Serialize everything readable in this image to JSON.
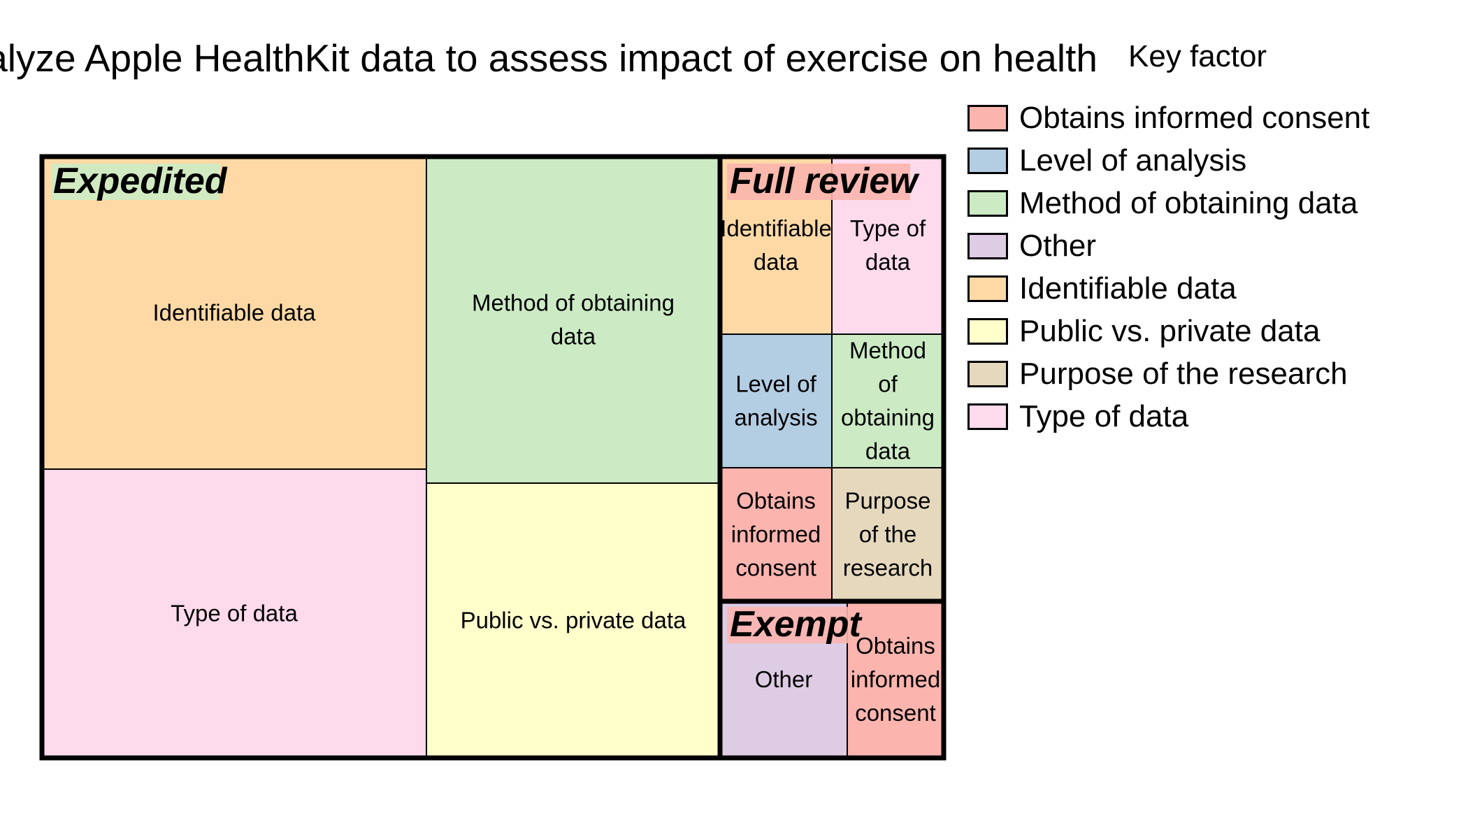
{
  "chart_data": {
    "type": "treemap",
    "title": "Analyze Apple HealthKit data to assess impact of exercise on health",
    "legend_title": "Key factor",
    "legend_position": "right",
    "legend": [
      {
        "name": "Obtains informed consent",
        "color": "#FBB4AE"
      },
      {
        "name": "Level of analysis",
        "color": "#B3CDE3"
      },
      {
        "name": "Method of obtaining data",
        "color": "#CCEBC5"
      },
      {
        "name": "Other",
        "color": "#DECBE4"
      },
      {
        "name": "Identifiable data",
        "color": "#FED9A6"
      },
      {
        "name": "Public vs. private data",
        "color": "#FFFFCC"
      },
      {
        "name": "Purpose of the research",
        "color": "#E5D8BD"
      },
      {
        "name": "Type of data",
        "color": "#FDDAEC"
      }
    ],
    "groups": [
      {
        "name": "Expedited",
        "label_bg": "#CCEBC5",
        "tiles": [
          {
            "label": "Identifiable data",
            "factor": "Identifiable data",
            "value": 4
          },
          {
            "label": "Type of data",
            "factor": "Type of data",
            "value": 3.7
          },
          {
            "label": "Method of obtaining data",
            "factor": "Method of obtaining data",
            "value": 3.4
          },
          {
            "label": "Public vs. private data",
            "factor": "Public vs. private data",
            "value": 2.9
          }
        ]
      },
      {
        "name": "Full review",
        "label_bg": "#FBB4AE",
        "tiles": [
          {
            "label": "Identifiable data",
            "factor": "Identifiable data",
            "value": 1
          },
          {
            "label": "Type of data",
            "factor": "Type of data",
            "value": 1
          },
          {
            "label": "Level of analysis",
            "factor": "Level of analysis",
            "value": 1
          },
          {
            "label": "Method of obtaining data",
            "factor": "Method of obtaining data",
            "value": 1
          },
          {
            "label": "Obtains informed consent",
            "factor": "Obtains informed consent",
            "value": 1
          },
          {
            "label": "Purpose of the research",
            "factor": "Purpose of the research",
            "value": 1
          }
        ]
      },
      {
        "name": "Exempt",
        "label_bg": "#FBB4AE",
        "tiles": [
          {
            "label": "Other",
            "factor": "Other",
            "value": 1.1
          },
          {
            "label": "Obtains informed consent",
            "factor": "Obtains informed consent",
            "value": 0.8
          }
        ]
      }
    ]
  }
}
